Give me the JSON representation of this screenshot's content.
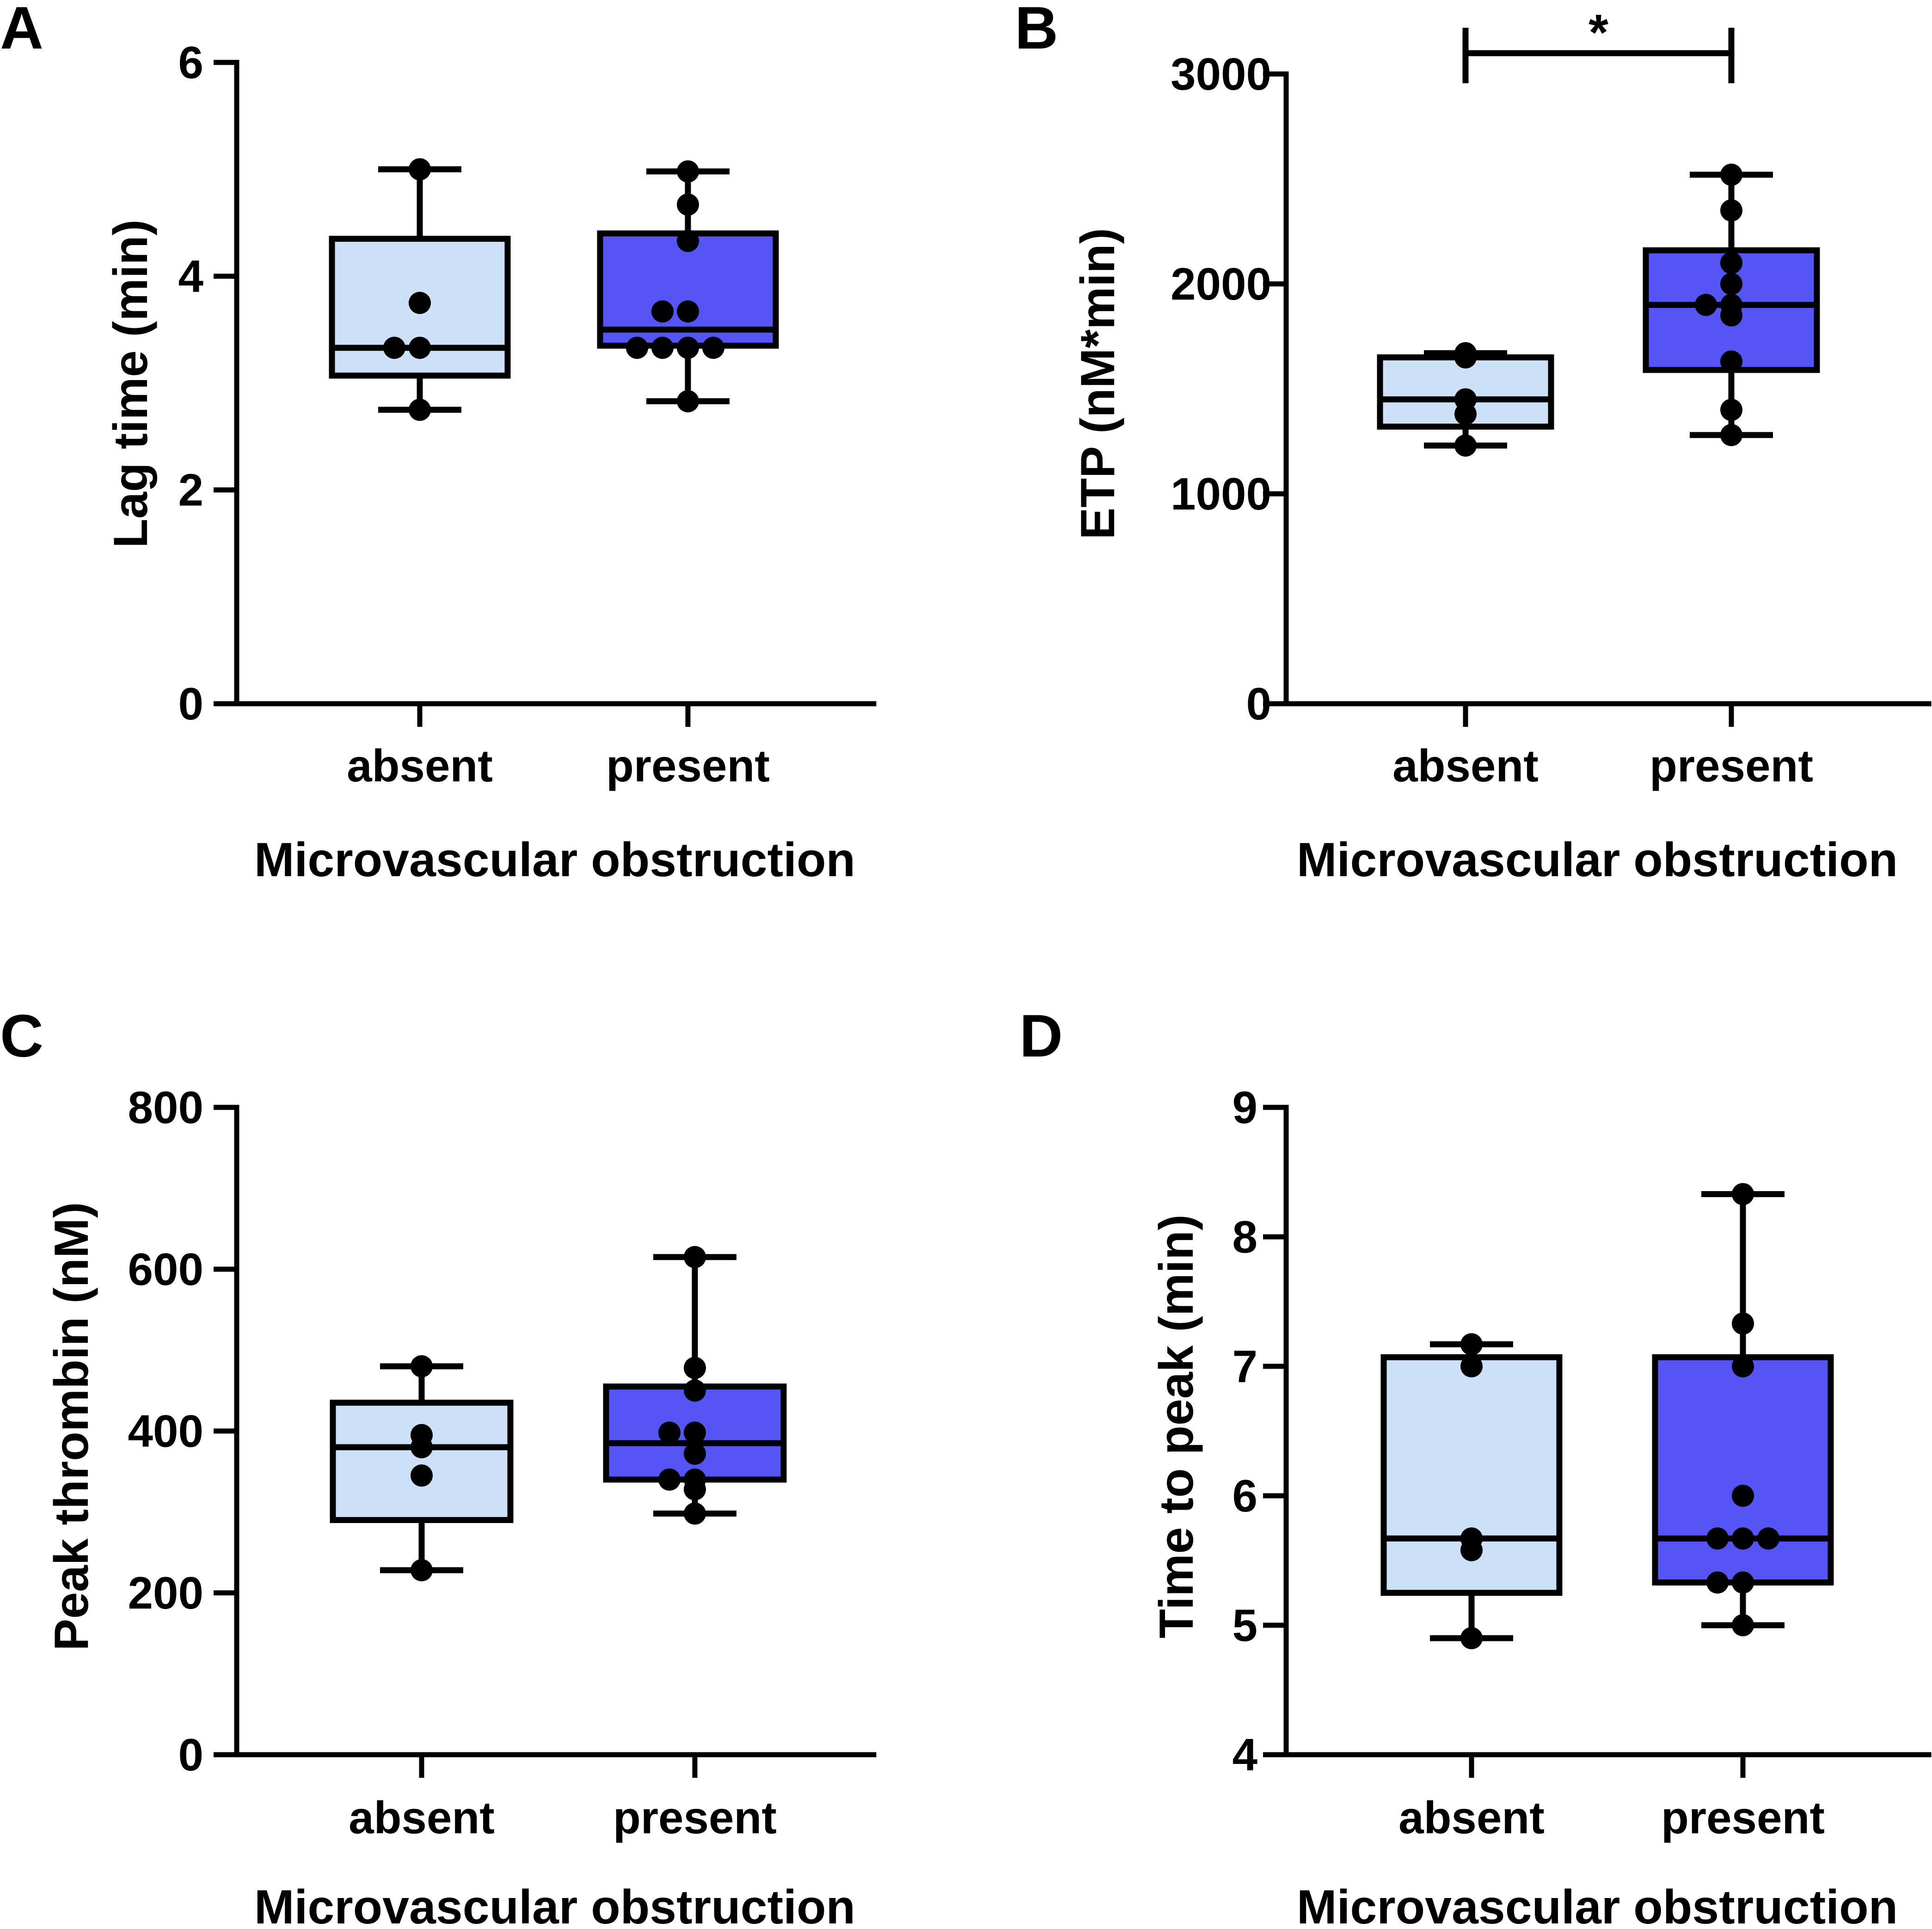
{
  "colors": {
    "absent_fill": "#cce0f7",
    "present_fill": "#5555f5",
    "ink": "#000000"
  },
  "chart_data": [
    {
      "panel": "A",
      "type": "box",
      "xlabel": "Microvascular obstruction",
      "ylabel": "Lag time (min)",
      "ylim": [
        0,
        6
      ],
      "yticks": [
        0,
        2,
        4,
        6
      ],
      "categories": [
        "absent",
        "present"
      ],
      "boxes": [
        {
          "category": "absent",
          "min": 2.75,
          "q1": 3.07,
          "median": 3.33,
          "q3": 4.35,
          "max": 5.0,
          "points": [
            5.0,
            3.75,
            3.33,
            3.33,
            2.75
          ]
        },
        {
          "category": "present",
          "min": 2.83,
          "q1": 3.35,
          "median": 3.5,
          "q3": 4.4,
          "max": 4.98,
          "points": [
            4.98,
            4.67,
            4.33,
            3.67,
            3.67,
            3.33,
            3.33,
            3.33,
            3.33,
            2.83
          ]
        }
      ]
    },
    {
      "panel": "B",
      "type": "box",
      "xlabel": "Microvascular obstruction",
      "ylabel": "ETP (nM*min)",
      "ylim": [
        0,
        3000
      ],
      "yticks": [
        0,
        1000,
        2000,
        3000
      ],
      "categories": [
        "absent",
        "present"
      ],
      "significance": {
        "label": "*",
        "between": [
          "absent",
          "present"
        ],
        "at": 3100
      },
      "boxes": [
        {
          "category": "absent",
          "min": 1230,
          "q1": 1320,
          "median": 1450,
          "q3": 1650,
          "max": 1670,
          "points": [
            1670,
            1650,
            1450,
            1380,
            1230
          ]
        },
        {
          "category": "present",
          "min": 1280,
          "q1": 1590,
          "median": 1900,
          "q3": 2160,
          "max": 2520,
          "points": [
            2520,
            2350,
            2100,
            2000,
            1900,
            1900,
            1850,
            1630,
            1400,
            1280
          ]
        }
      ]
    },
    {
      "panel": "C",
      "type": "box",
      "xlabel": "Microvascular obstruction",
      "ylabel": "Peak thrombin (nM)",
      "ylim": [
        0,
        800
      ],
      "yticks": [
        0,
        200,
        400,
        600,
        800
      ],
      "categories": [
        "absent",
        "present"
      ],
      "boxes": [
        {
          "category": "absent",
          "min": 228,
          "q1": 290,
          "median": 380,
          "q3": 435,
          "max": 480,
          "points": [
            480,
            395,
            380,
            345,
            228
          ]
        },
        {
          "category": "present",
          "min": 298,
          "q1": 340,
          "median": 385,
          "q3": 455,
          "max": 615,
          "points": [
            615,
            478,
            450,
            398,
            398,
            372,
            340,
            340,
            328,
            298
          ]
        }
      ]
    },
    {
      "panel": "D",
      "type": "box",
      "xlabel": "Microvascular obstruction",
      "ylabel": "Time to peak (min)",
      "ylim": [
        4,
        9
      ],
      "yticks": [
        4,
        5,
        6,
        7,
        8,
        9
      ],
      "categories": [
        "absent",
        "present"
      ],
      "boxes": [
        {
          "category": "absent",
          "min": 4.9,
          "q1": 5.25,
          "median": 5.67,
          "q3": 7.07,
          "max": 7.17,
          "points": [
            7.17,
            7.0,
            5.67,
            5.58,
            4.9
          ]
        },
        {
          "category": "present",
          "min": 5.0,
          "q1": 5.33,
          "median": 5.67,
          "q3": 7.07,
          "max": 8.33,
          "points": [
            8.33,
            7.33,
            7.0,
            6.0,
            5.67,
            5.67,
            5.67,
            5.33,
            5.33,
            5.0
          ]
        }
      ]
    }
  ]
}
